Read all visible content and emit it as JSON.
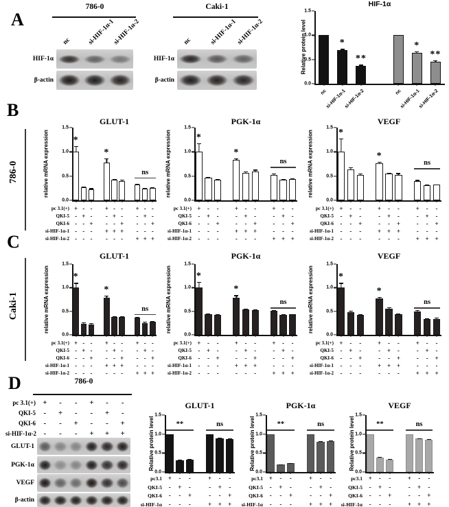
{
  "panels": {
    "a": "A",
    "b": "B",
    "c": "C",
    "d": "D"
  },
  "side_labels": {
    "b": "786-0",
    "c": "Caki-1"
  },
  "colors": {
    "bar_black": "#121212",
    "bar_gray": "#8e8e8e",
    "bar_dark": "#262020",
    "bar_mid_gray": "#5a5a5a",
    "bar_light_gray": "#a8a8a8",
    "bar_white": "#ffffff"
  },
  "ytick_sets": {
    "std": [
      {
        "v": 0,
        "t": "0.0"
      },
      {
        "v": 0.5,
        "t": "0.5"
      },
      {
        "v": 1.0,
        "t": "1.0"
      },
      {
        "v": 1.5,
        "t": "1.5"
      }
    ]
  },
  "matrices": {
    "m9": [
      {
        "label": "pc 3.1(+)",
        "signs": [
          "+",
          "-",
          "-",
          "+",
          "-",
          "-",
          "+",
          "-",
          "-"
        ]
      },
      {
        "label": "QKI-5",
        "signs": [
          "-",
          "+",
          "-",
          "-",
          "+",
          "-",
          "-",
          "+",
          "-"
        ]
      },
      {
        "label": "QKI-6",
        "signs": [
          "-",
          "-",
          "+",
          "-",
          "-",
          "+",
          "-",
          "-",
          "+"
        ]
      },
      {
        "label": "si-HIF-1α-1",
        "signs": [
          "-",
          "-",
          "-",
          "+",
          "+",
          "+",
          "-",
          "-",
          "-"
        ]
      },
      {
        "label": "si-HIF-1α-2",
        "signs": [
          "-",
          "-",
          "-",
          "-",
          "-",
          "-",
          "+",
          "+",
          "+"
        ]
      }
    ],
    "m6": [
      {
        "label": "pc3.1",
        "signs": [
          "+",
          "-",
          "-",
          "+",
          "-",
          "-"
        ]
      },
      {
        "label": "QKI-5",
        "signs": [
          "-",
          "+",
          "-",
          "-",
          "+",
          "-"
        ]
      },
      {
        "label": "QKI-6",
        "signs": [
          "-",
          "-",
          "+",
          "-",
          "-",
          "+"
        ]
      },
      {
        "label": "si-HIF-1α",
        "signs": [
          "-",
          "-",
          "-",
          "+",
          "+",
          "+"
        ]
      }
    ],
    "m6blot": [
      {
        "label": "pc 3.1(+)",
        "signs": [
          "+",
          "-",
          "-",
          "+",
          "-",
          "-"
        ]
      },
      {
        "label": "QKI-5",
        "signs": [
          "-",
          "+",
          "-",
          "-",
          "+",
          "-"
        ]
      },
      {
        "label": "QKI-6",
        "signs": [
          "-",
          "-",
          "+",
          "-",
          "-",
          "+"
        ]
      },
      {
        "label": "si-HIF-1α-2",
        "signs": [
          "-",
          "-",
          "-",
          "+",
          "+",
          "+"
        ]
      }
    ]
  },
  "blots": [
    {
      "cell_line": "786-0",
      "lane_labels": [
        "nc",
        "si-HIF-1α-1",
        "si-HIF-1α-2"
      ],
      "rows": [
        {
          "label": "HIF-1α",
          "band_h": 13,
          "bands": [
            0.85,
            0.55,
            0.42
          ]
        },
        {
          "label": "β-actin",
          "band_h": 18,
          "bands": [
            0.97,
            0.95,
            0.92
          ]
        }
      ]
    },
    {
      "cell_line": "Caki-1",
      "lane_labels": [
        "nc",
        "si-HIF-1α-1",
        "si-HIF-1α-2"
      ],
      "rows": [
        {
          "label": "HIF-1α",
          "band_h": 14,
          "bands": [
            0.9,
            0.62,
            0.55
          ]
        },
        {
          "label": "β-actin",
          "band_h": 18,
          "bands": [
            0.95,
            0.92,
            0.9
          ]
        }
      ]
    },
    {
      "cell_line": "786-0",
      "conditions": "m6blot",
      "rows": [
        {
          "label": "GLUT-1",
          "band_h": 16,
          "bands": [
            0.6,
            0.35,
            0.35,
            0.95,
            0.9,
            0.95
          ]
        },
        {
          "label": "PGK-1α",
          "band_h": 16,
          "bands": [
            0.95,
            0.3,
            0.35,
            0.95,
            0.85,
            0.9
          ]
        },
        {
          "label": "VEGF",
          "band_h": 16,
          "bands": [
            0.97,
            0.55,
            0.5,
            0.97,
            0.85,
            0.7
          ]
        },
        {
          "label": "β-actin",
          "band_h": 15,
          "bands": [
            0.95,
            0.95,
            0.95,
            0.95,
            0.95,
            0.95
          ]
        }
      ]
    }
  ],
  "chart_data": [
    {
      "id": "a-hif1a",
      "type": "bar",
      "title": "HIF-1α",
      "ylabel": "Relative protein level",
      "ylim": [
        0,
        1.5
      ],
      "yticks": "std",
      "groups": 2,
      "values": [
        1.0,
        0.7,
        0.37,
        1.0,
        0.64,
        0.45
      ],
      "errors": [
        0,
        0.015,
        0.02,
        0,
        0.025,
        0.03
      ],
      "fills": [
        "#121212",
        "#121212",
        "#121212",
        "#8e8e8e",
        "#8e8e8e",
        "#8e8e8e"
      ],
      "border": "#121212",
      "xlabels": [
        "nc",
        "si-HIF-1α-1",
        "si-HIF-1α-2",
        "nc",
        "si-HIF-1α-1",
        "si-HIF-1α-2"
      ],
      "annotations": [
        {
          "text": "*",
          "bar": 1
        },
        {
          "text": "**",
          "bar": 2
        },
        {
          "text": "*",
          "bar": 4
        },
        {
          "text": "**",
          "bar": 5
        }
      ]
    },
    {
      "id": "b-glut1",
      "type": "bar",
      "title": "GLUT-1",
      "ylabel": "relative mRNA expression",
      "ylim": [
        0,
        1.5
      ],
      "yticks": "std",
      "groups": 3,
      "values": [
        1.0,
        0.27,
        0.23,
        0.78,
        0.42,
        0.4,
        0.32,
        0.24,
        0.26
      ],
      "errors": [
        0.12,
        0.02,
        0.02,
        0.08,
        0.02,
        0.03,
        0.02,
        0.02,
        0.01
      ],
      "fill": "#ffffff",
      "border": "#1a1a1a",
      "matrix": "m9",
      "annotations": [
        {
          "text": "*",
          "bar": 0
        },
        {
          "text": "*",
          "bar": 3
        },
        {
          "text": "ns",
          "from": 6,
          "to": 8,
          "y": 0.47
        }
      ]
    },
    {
      "id": "b-pgk1a",
      "type": "bar",
      "title": "PGK-1α",
      "ylabel": "relative mRNA expression",
      "ylim": [
        0,
        1.5
      ],
      "yticks": "std",
      "groups": 3,
      "values": [
        1.0,
        0.46,
        0.42,
        0.83,
        0.57,
        0.6,
        0.53,
        0.42,
        0.44
      ],
      "errors": [
        0.18,
        0.02,
        0.02,
        0.03,
        0.02,
        0.03,
        0.02,
        0.02,
        0.01
      ],
      "fill": "#ffffff",
      "border": "#1a1a1a",
      "matrix": "m9",
      "annotations": [
        {
          "text": "*",
          "bar": 0
        },
        {
          "text": "*",
          "bar": 3
        },
        {
          "text": "ns",
          "from": 6,
          "to": 8,
          "y": 0.69
        }
      ]
    },
    {
      "id": "b-vegf",
      "type": "bar",
      "title": "VEGF",
      "ylabel": "relative mRNA expression",
      "ylim": [
        0,
        1.5
      ],
      "yticks": "std",
      "groups": 3,
      "values": [
        1.0,
        0.63,
        0.52,
        0.77,
        0.55,
        0.52,
        0.39,
        0.31,
        0.32
      ],
      "errors": [
        0.28,
        0.05,
        0.03,
        0.02,
        0.02,
        0.04,
        0.03,
        0.01,
        0.01
      ],
      "fill": "#ffffff",
      "border": "#1a1a1a",
      "matrix": "m9",
      "annotations": [
        {
          "text": "*",
          "bar": 0
        },
        {
          "text": "*",
          "bar": 3
        },
        {
          "text": "ns",
          "from": 6,
          "to": 8,
          "y": 0.66
        }
      ]
    },
    {
      "id": "c-glut1",
      "type": "bar",
      "title": "GLUT-1",
      "ylabel": "relative mRNA expression",
      "ylim": [
        0,
        1.5
      ],
      "yticks": "std",
      "groups": 3,
      "values": [
        1.0,
        0.24,
        0.22,
        0.78,
        0.38,
        0.38,
        0.36,
        0.25,
        0.27
      ],
      "errors": [
        0.1,
        0.02,
        0.03,
        0.05,
        0.01,
        0.01,
        0.02,
        0.03,
        0.02
      ],
      "fill": "#262020",
      "border": "#1a1a1a",
      "matrix": "m9",
      "annotations": [
        {
          "text": "*",
          "bar": 0
        },
        {
          "text": "*",
          "bar": 3
        },
        {
          "text": "ns",
          "from": 6,
          "to": 8,
          "y": 0.44
        }
      ]
    },
    {
      "id": "c-pgk1a",
      "type": "bar",
      "title": "PGK-1α",
      "ylabel": "relative mRNA expression",
      "ylim": [
        0,
        1.5
      ],
      "yticks": "std",
      "groups": 3,
      "values": [
        1.0,
        0.43,
        0.42,
        0.79,
        0.54,
        0.53,
        0.51,
        0.42,
        0.43
      ],
      "errors": [
        0.12,
        0.02,
        0.02,
        0.05,
        0.02,
        0.01,
        0.02,
        0.02,
        0.01
      ],
      "fill": "#262020",
      "border": "#1a1a1a",
      "matrix": "m9",
      "annotations": [
        {
          "text": "*",
          "bar": 0
        },
        {
          "text": "*",
          "bar": 3
        },
        {
          "text": "ns",
          "from": 6,
          "to": 8,
          "y": 0.58
        }
      ]
    },
    {
      "id": "c-vegf",
      "type": "bar",
      "title": "VEGF",
      "ylabel": "relative mRNA expression",
      "ylim": [
        0,
        1.5
      ],
      "yticks": "std",
      "groups": 3,
      "values": [
        1.0,
        0.48,
        0.42,
        0.77,
        0.55,
        0.43,
        0.5,
        0.33,
        0.34
      ],
      "errors": [
        0.1,
        0.03,
        0.02,
        0.03,
        0.03,
        0.02,
        0.02,
        0.02,
        0.03
      ],
      "fill": "#262020",
      "border": "#1a1a1a",
      "matrix": "m9",
      "annotations": [
        {
          "text": "*",
          "bar": 0
        },
        {
          "text": "*",
          "bar": 3
        },
        {
          "text": "ns",
          "from": 6,
          "to": 8,
          "y": 0.58
        }
      ]
    },
    {
      "id": "d-glut1",
      "type": "bar",
      "title": "GLUT-1",
      "ylabel": "Relative protein level",
      "ylim": [
        0,
        1.5
      ],
      "yticks": "std",
      "groups": 2,
      "values": [
        1.0,
        0.31,
        0.33,
        1.0,
        0.88,
        0.86
      ],
      "errors": [
        0,
        0.01,
        0.01,
        0,
        0.02,
        0.03
      ],
      "fill": "#141414",
      "border": "#141414",
      "matrix": "m6",
      "annotations": [
        {
          "text": "**",
          "from": 0,
          "to": 2,
          "y": 1.12
        },
        {
          "text": "ns",
          "from": 3,
          "to": 5,
          "y": 1.12
        }
      ]
    },
    {
      "id": "d-pgk1a",
      "type": "bar",
      "title": "PGK-1α",
      "ylabel": "Relative protein level",
      "ylim": [
        0,
        1.5
      ],
      "yticks": "std",
      "groups": 2,
      "values": [
        1.0,
        0.19,
        0.23,
        1.0,
        0.8,
        0.82
      ],
      "errors": [
        0,
        0.01,
        0.01,
        0,
        0.02,
        0.02
      ],
      "fill": "#5a5a5a",
      "border": "#4a4a4a",
      "matrix": "m6",
      "annotations": [
        {
          "text": "**",
          "from": 0,
          "to": 2,
          "y": 1.12
        },
        {
          "text": "ns",
          "from": 3,
          "to": 5,
          "y": 1.12
        }
      ]
    },
    {
      "id": "d-vegf",
      "type": "bar",
      "title": "VEGF",
      "ylabel": "Relative protein level",
      "ylim": [
        0,
        1.5
      ],
      "yticks": "std",
      "groups": 2,
      "values": [
        1.0,
        0.38,
        0.33,
        1.0,
        0.88,
        0.85
      ],
      "errors": [
        0,
        0.02,
        0.01,
        0,
        0.01,
        0.02
      ],
      "fill": "#a8a8a8",
      "border": "#8f8f8f",
      "matrix": "m6",
      "annotations": [
        {
          "text": "**",
          "from": 0,
          "to": 2,
          "y": 1.12
        },
        {
          "text": "ns",
          "from": 3,
          "to": 5,
          "y": 1.12
        }
      ]
    }
  ]
}
